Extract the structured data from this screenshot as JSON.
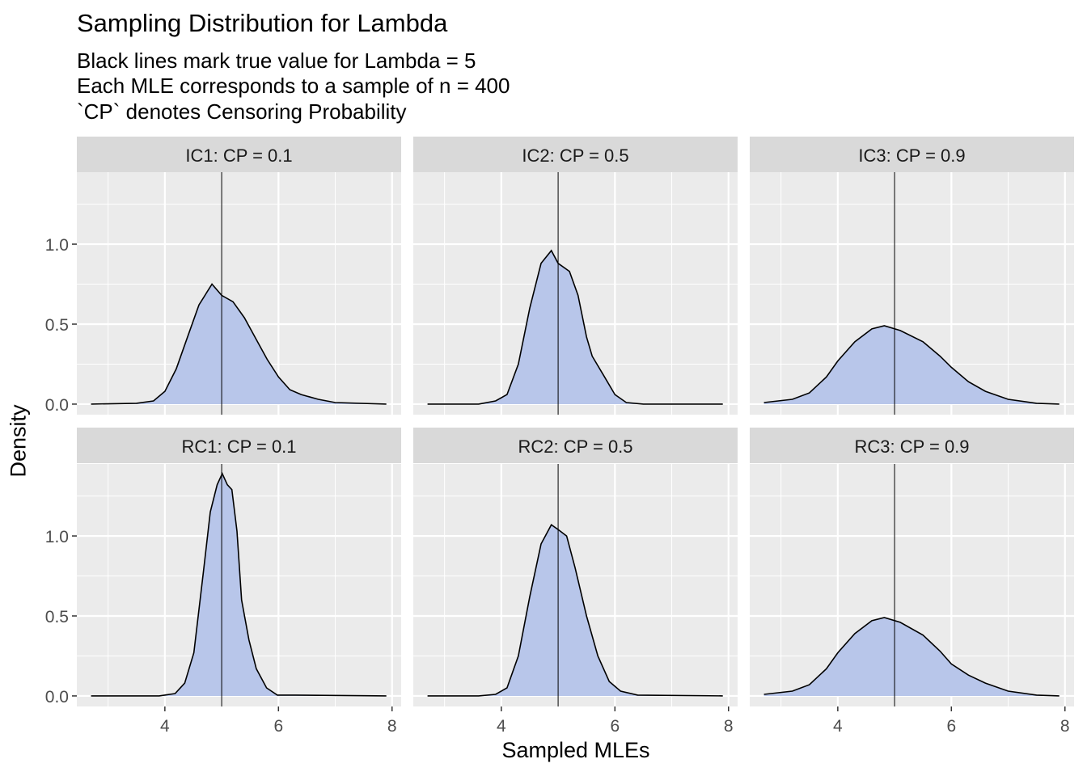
{
  "chart_data": {
    "type": "area",
    "title": "Sampling Distribution for Lambda",
    "subtitle": [
      "Black lines mark true value for Lambda = 5",
      "Each MLE corresponds to a sample of n = 400",
      "`CP` denotes Censoring Probability"
    ],
    "xlabel": "Sampled MLEs",
    "ylabel": "Density",
    "xlim": [
      2.45,
      8.16
    ],
    "ylim": [
      -0.066,
      1.45
    ],
    "xticks": [
      4,
      6,
      8
    ],
    "yticks": [
      0.0,
      0.5,
      1.0
    ],
    "ytick_labels": [
      "0.0",
      "0.5",
      "1.0"
    ],
    "vline": 5,
    "grid": true,
    "colors": {
      "fill": "#b8c6ea",
      "line": "#000000",
      "panel": "#ebebeb",
      "strip": "#d9d9d9"
    },
    "panels": [
      {
        "label": "IC1: CP = 0.1",
        "points": [
          [
            2.7,
            0
          ],
          [
            3.5,
            0.005
          ],
          [
            3.8,
            0.02
          ],
          [
            4.0,
            0.08
          ],
          [
            4.2,
            0.22
          ],
          [
            4.4,
            0.42
          ],
          [
            4.6,
            0.62
          ],
          [
            4.83,
            0.75
          ],
          [
            5.0,
            0.68
          ],
          [
            5.2,
            0.64
          ],
          [
            5.4,
            0.54
          ],
          [
            5.6,
            0.41
          ],
          [
            5.8,
            0.28
          ],
          [
            6.0,
            0.17
          ],
          [
            6.2,
            0.09
          ],
          [
            6.4,
            0.06
          ],
          [
            6.7,
            0.03
          ],
          [
            7.0,
            0.01
          ],
          [
            7.9,
            0
          ]
        ]
      },
      {
        "label": "IC2: CP = 0.5",
        "points": [
          [
            2.7,
            0
          ],
          [
            3.6,
            0
          ],
          [
            3.9,
            0.02
          ],
          [
            4.1,
            0.06
          ],
          [
            4.3,
            0.25
          ],
          [
            4.5,
            0.6
          ],
          [
            4.7,
            0.88
          ],
          [
            4.88,
            0.96
          ],
          [
            5.0,
            0.88
          ],
          [
            5.2,
            0.83
          ],
          [
            5.35,
            0.68
          ],
          [
            5.5,
            0.42
          ],
          [
            5.6,
            0.3
          ],
          [
            5.8,
            0.18
          ],
          [
            6.0,
            0.06
          ],
          [
            6.2,
            0.01
          ],
          [
            6.5,
            0
          ],
          [
            7.9,
            0
          ]
        ]
      },
      {
        "label": "IC3: CP = 0.9",
        "points": [
          [
            2.7,
            0.01
          ],
          [
            3.2,
            0.03
          ],
          [
            3.5,
            0.07
          ],
          [
            3.8,
            0.17
          ],
          [
            4.0,
            0.27
          ],
          [
            4.3,
            0.39
          ],
          [
            4.6,
            0.47
          ],
          [
            4.82,
            0.49
          ],
          [
            5.1,
            0.46
          ],
          [
            5.5,
            0.39
          ],
          [
            5.8,
            0.3
          ],
          [
            6.0,
            0.23
          ],
          [
            6.3,
            0.14
          ],
          [
            6.6,
            0.08
          ],
          [
            7.0,
            0.03
          ],
          [
            7.5,
            0.005
          ],
          [
            7.9,
            0
          ]
        ]
      },
      {
        "label": "RC1: CP = 0.1",
        "points": [
          [
            2.7,
            0
          ],
          [
            3.9,
            0
          ],
          [
            4.18,
            0.015
          ],
          [
            4.35,
            0.08
          ],
          [
            4.51,
            0.27
          ],
          [
            4.68,
            0.78
          ],
          [
            4.8,
            1.15
          ],
          [
            4.92,
            1.32
          ],
          [
            5.01,
            1.39
          ],
          [
            5.1,
            1.32
          ],
          [
            5.18,
            1.29
          ],
          [
            5.27,
            1.03
          ],
          [
            5.35,
            0.6
          ],
          [
            5.48,
            0.35
          ],
          [
            5.61,
            0.17
          ],
          [
            5.79,
            0.05
          ],
          [
            5.98,
            0.005
          ],
          [
            6.3,
            0.005
          ],
          [
            7.9,
            0
          ]
        ]
      },
      {
        "label": "RC2: CP = 0.5",
        "points": [
          [
            2.7,
            0
          ],
          [
            3.6,
            0
          ],
          [
            3.9,
            0.01
          ],
          [
            4.1,
            0.05
          ],
          [
            4.3,
            0.25
          ],
          [
            4.5,
            0.62
          ],
          [
            4.7,
            0.95
          ],
          [
            4.88,
            1.07
          ],
          [
            5.0,
            1.04
          ],
          [
            5.15,
            1.0
          ],
          [
            5.3,
            0.8
          ],
          [
            5.5,
            0.5
          ],
          [
            5.7,
            0.25
          ],
          [
            5.9,
            0.09
          ],
          [
            6.1,
            0.03
          ],
          [
            6.4,
            0.005
          ],
          [
            7.9,
            0
          ]
        ]
      },
      {
        "label": "RC3: CP = 0.9",
        "points": [
          [
            2.7,
            0.01
          ],
          [
            3.2,
            0.03
          ],
          [
            3.5,
            0.07
          ],
          [
            3.8,
            0.17
          ],
          [
            4.0,
            0.27
          ],
          [
            4.3,
            0.39
          ],
          [
            4.6,
            0.47
          ],
          [
            4.82,
            0.49
          ],
          [
            5.1,
            0.46
          ],
          [
            5.5,
            0.38
          ],
          [
            5.8,
            0.28
          ],
          [
            6.0,
            0.2
          ],
          [
            6.3,
            0.13
          ],
          [
            6.6,
            0.08
          ],
          [
            7.0,
            0.03
          ],
          [
            7.5,
            0.005
          ],
          [
            7.9,
            0
          ]
        ]
      }
    ]
  }
}
